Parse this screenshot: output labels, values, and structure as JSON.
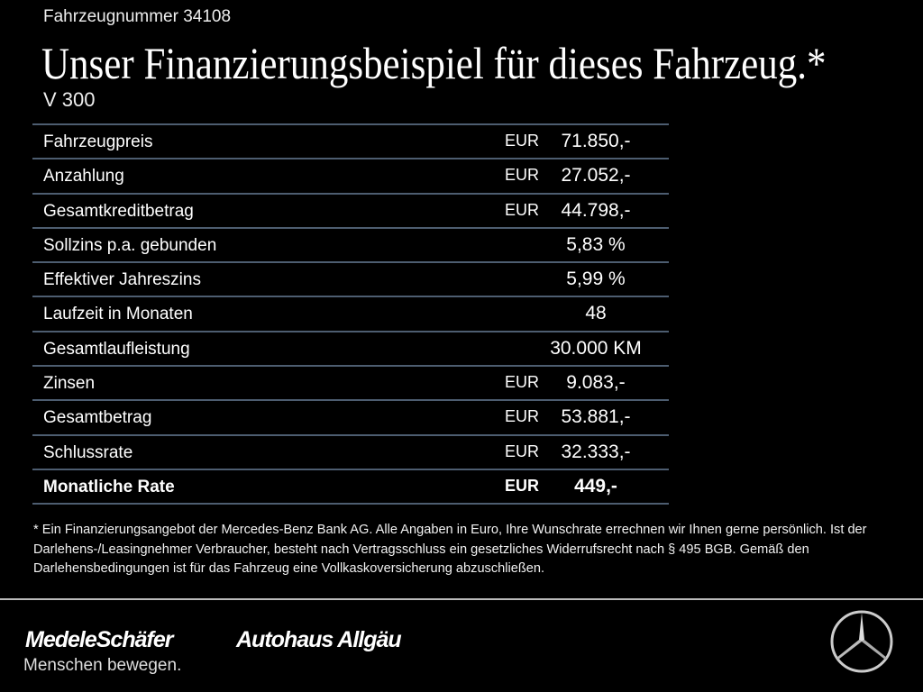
{
  "header": {
    "vehicle_number": "Fahrzeugnummer 34108",
    "title": "Unser Finanzierungsbeispiel für dieses Fahrzeug.*",
    "model": "V 300"
  },
  "table": {
    "rows": [
      {
        "label": "Fahrzeugpreis",
        "currency": "EUR",
        "value": "71.850,-"
      },
      {
        "label": "Anzahlung",
        "currency": "EUR",
        "value": "27.052,-"
      },
      {
        "label": "Gesamtkreditbetrag",
        "currency": "EUR",
        "value": "44.798,-"
      },
      {
        "label": "Sollzins p.a. gebunden",
        "currency": "",
        "value": "5,83 %"
      },
      {
        "label": "Effektiver Jahreszins",
        "currency": "",
        "value": "5,99 %"
      },
      {
        "label": "Laufzeit in Monaten",
        "currency": "",
        "value": "48"
      },
      {
        "label": "Gesamtlaufleistung",
        "currency": "",
        "value": "30.000 KM"
      },
      {
        "label": "Zinsen",
        "currency": "EUR",
        "value": "9.083,-"
      },
      {
        "label": "Gesamtbetrag",
        "currency": "EUR",
        "value": "53.881,-"
      },
      {
        "label": "Schlussrate",
        "currency": "EUR",
        "value": "32.333,-"
      },
      {
        "label": "Monatliche Rate",
        "currency": "EUR",
        "value": "449,-"
      }
    ]
  },
  "footnote": "* Ein Finanzierungsangebot der Mercedes-Benz Bank AG. Alle Angaben in Euro, Ihre Wunschrate errechnen wir Ihnen gerne persönlich. Ist der Darlehens-/Leasingnehmer Verbraucher, besteht nach Vertragsschluss ein gesetzliches Widerrufsrecht nach § 495 BGB. Gemäß den Darlehensbedingungen ist für das Fahrzeug eine Vollkaskoversicherung abzuschließen.",
  "footer": {
    "brand1": "MedeleSchäfer",
    "brand2": "Autohaus Allgäu",
    "slogan": "Menschen bewegen.",
    "logo_icon": "mercedes-star-icon"
  },
  "colors": {
    "background": "#000000",
    "row_divider": "#4d5d70",
    "text": "#ffffff"
  }
}
